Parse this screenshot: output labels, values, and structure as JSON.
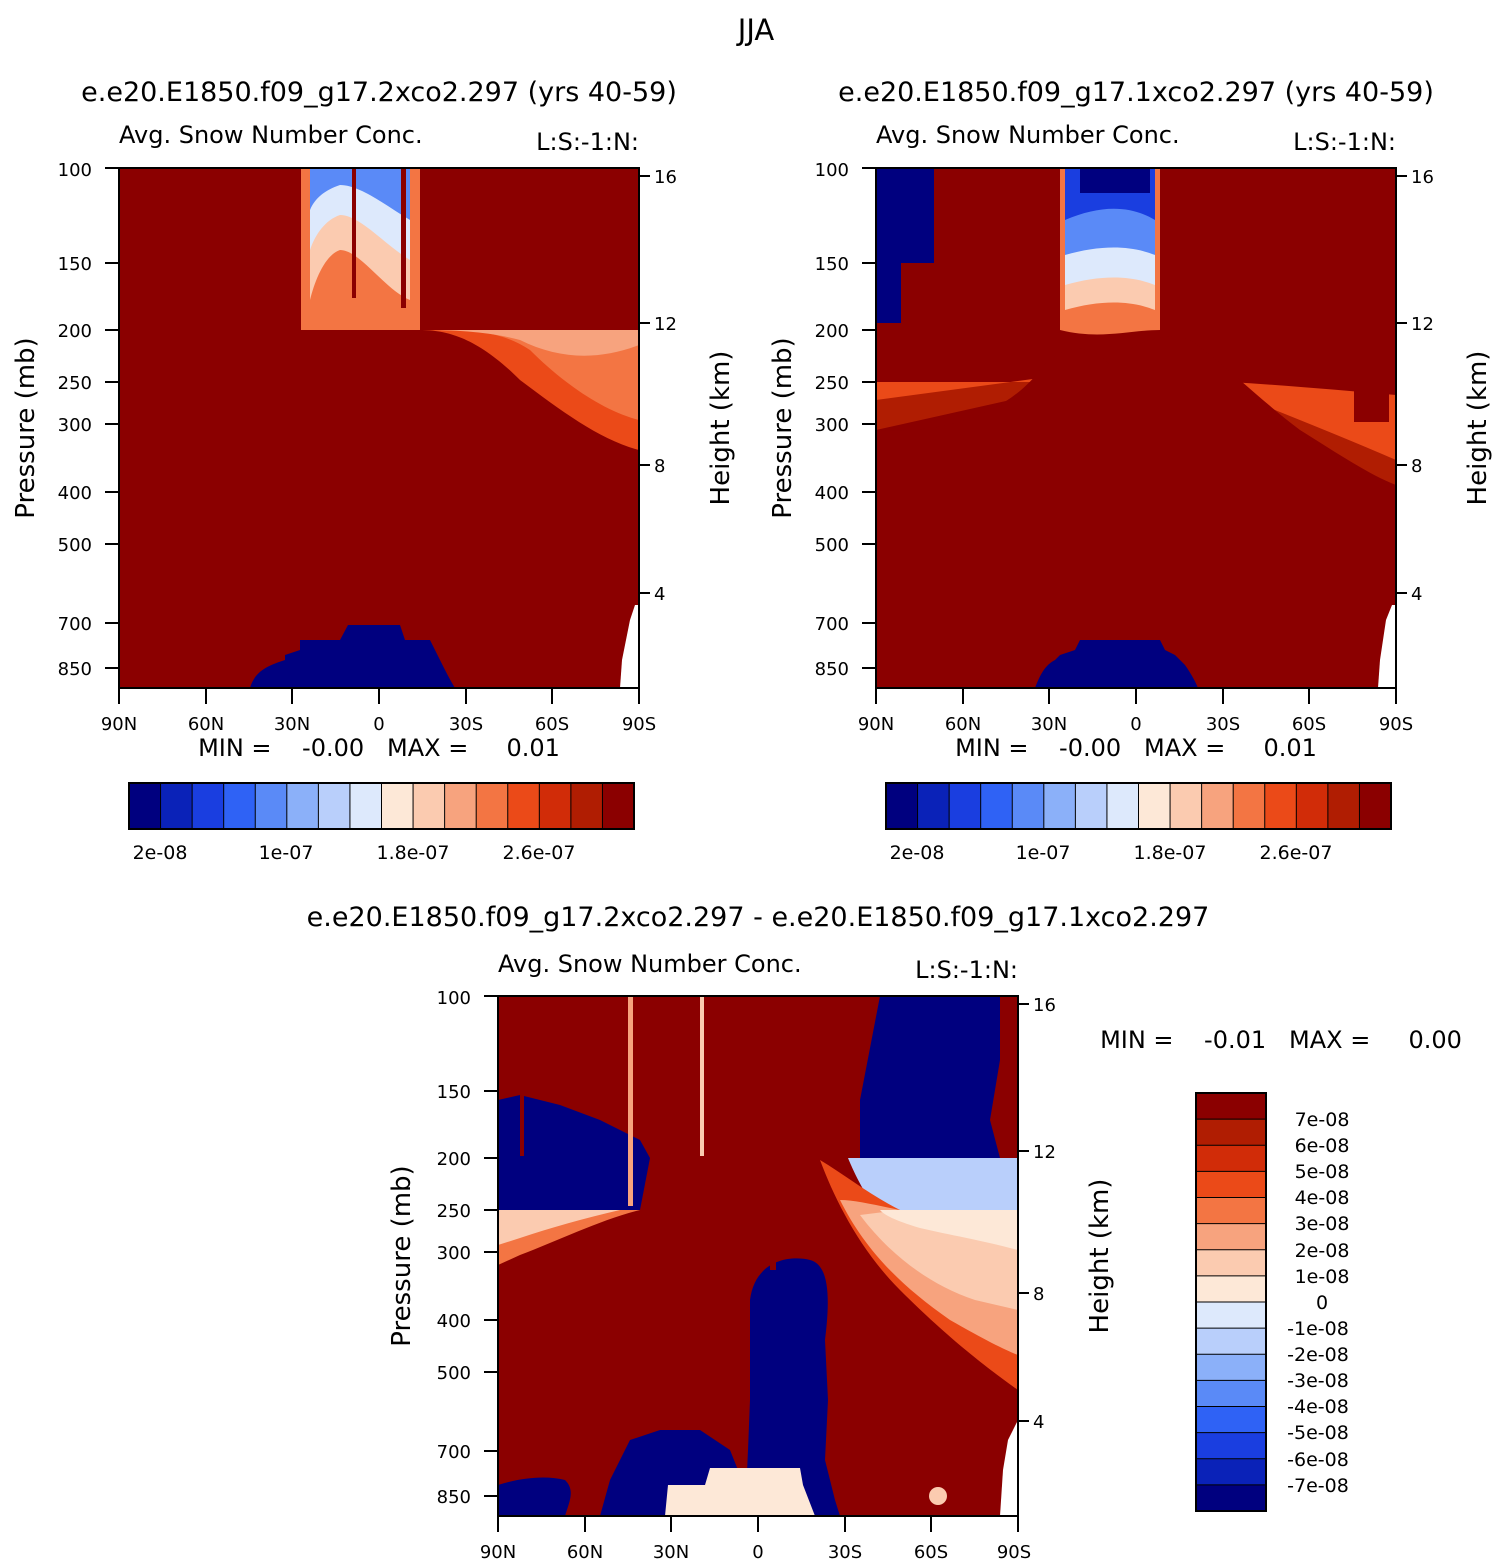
{
  "figure_title": "JJA",
  "chart_data": [
    {
      "type": "heatmap",
      "title": "e.e20.E1850.f09_g17.2xco2.297 (yrs 40-59)",
      "subtitle_left": "Avg. Snow Number Conc.",
      "subtitle_right": "L:S:-1:N:",
      "xlabel": "",
      "ylabel": "Pressure (mb)",
      "ylabel_right": "Height (km)",
      "x_ticks": [
        "90N",
        "60N",
        "30N",
        "0",
        "30S",
        "60S",
        "90S"
      ],
      "y_ticks": [
        "100",
        "150",
        "200",
        "250",
        "300",
        "400",
        "500",
        "700",
        "850"
      ],
      "y_ticks_right": [
        "16",
        "12",
        "8",
        "4"
      ],
      "min_max_text": "MIN =    -0.00   MAX =     0.01",
      "colorbar_labels": [
        "2e-08",
        "1e-07",
        "1.8e-07",
        "2.6e-07"
      ]
    },
    {
      "type": "heatmap",
      "title": "e.e20.E1850.f09_g17.1xco2.297 (yrs 40-59)",
      "subtitle_left": "Avg. Snow Number Conc.",
      "subtitle_right": "L:S:-1:N:",
      "xlabel": "",
      "ylabel": "Pressure (mb)",
      "ylabel_right": "Height (km)",
      "x_ticks": [
        "90N",
        "60N",
        "30N",
        "0",
        "30S",
        "60S",
        "90S"
      ],
      "y_ticks": [
        "100",
        "150",
        "200",
        "250",
        "300",
        "400",
        "500",
        "700",
        "850"
      ],
      "y_ticks_right": [
        "16",
        "12",
        "8",
        "4"
      ],
      "min_max_text": "MIN =    -0.00   MAX =     0.01",
      "colorbar_labels": [
        "2e-08",
        "1e-07",
        "1.8e-07",
        "2.6e-07"
      ]
    },
    {
      "type": "heatmap",
      "title": "e.e20.E1850.f09_g17.2xco2.297 - e.e20.E1850.f09_g17.1xco2.297",
      "subtitle_left": "Avg. Snow Number Conc.",
      "subtitle_right": "L:S:-1:N:",
      "xlabel": "",
      "ylabel": "Pressure (mb)",
      "ylabel_right": "Height (km)",
      "x_ticks": [
        "90N",
        "60N",
        "30N",
        "0",
        "30S",
        "60S",
        "90S"
      ],
      "y_ticks": [
        "100",
        "150",
        "200",
        "250",
        "300",
        "400",
        "500",
        "700",
        "850"
      ],
      "y_ticks_right": [
        "16",
        "12",
        "8",
        "4"
      ],
      "min_max_text": "MIN =    -0.01   MAX =     0.00",
      "colorbar_labels": [
        "7e-08",
        "6e-08",
        "5e-08",
        "4e-08",
        "3e-08",
        "2e-08",
        "1e-08",
        "0",
        "-1e-08",
        "-2e-08",
        "-3e-08",
        "-4e-08",
        "-5e-08",
        "-6e-08",
        "-7e-08"
      ]
    }
  ],
  "colors": {
    "palette": [
      "#00007f",
      "#0a22b8",
      "#1a3ee0",
      "#2f62f5",
      "#5a8af7",
      "#8bb0f9",
      "#b9cffb",
      "#dde9fc",
      "#fde8d7",
      "#fbcbb0",
      "#f7a37e",
      "#f37543",
      "#eb4a18",
      "#d12c08",
      "#b01d02",
      "#8b0000"
    ]
  }
}
